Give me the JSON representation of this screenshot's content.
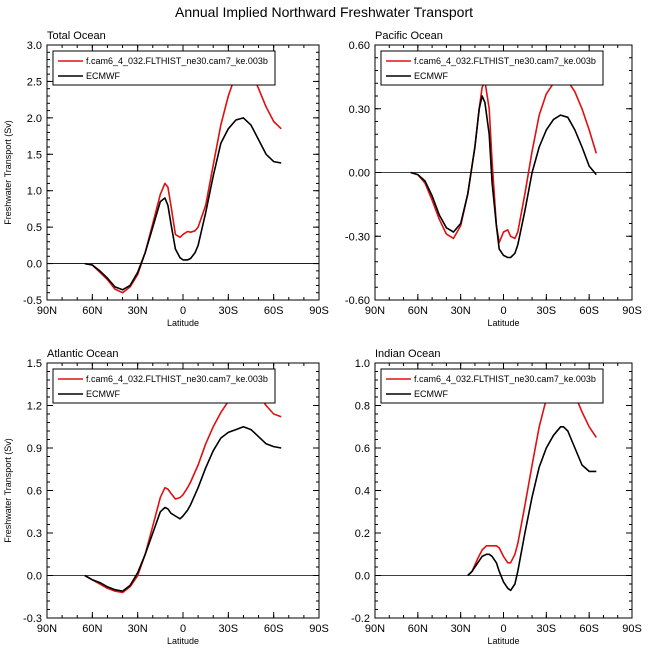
{
  "figure": {
    "title": "Annual Implied Northward Freshwater Transport"
  },
  "chart_data": [
    {
      "type": "line",
      "title": "Total Ocean",
      "xlabel": "Latitude",
      "ylabel": "Freshwater Transport (Sv)",
      "x_ticks": [
        "90N",
        "60N",
        "30N",
        "0",
        "30S",
        "60S",
        "90S"
      ],
      "y_ticks": [
        "-0.5",
        "0.0",
        "0.5",
        "1.0",
        "1.5",
        "2.0",
        "2.5",
        "3.0"
      ],
      "xlim": [
        90,
        -90
      ],
      "ylim": [
        -0.5,
        3.0
      ],
      "zero_line": true,
      "legend_position": "top-left",
      "series": [
        {
          "name": "f.cam6_4_032.FLTHIST_ne30.cam7_ke.003b",
          "color": "#e01010",
          "x": [
            65,
            60,
            55,
            50,
            45,
            40,
            35,
            30,
            25,
            20,
            15,
            12,
            10,
            8,
            5,
            2,
            0,
            -3,
            -5,
            -8,
            -10,
            -15,
            -20,
            -25,
            -30,
            -35,
            -40,
            -45,
            -50,
            -55,
            -60,
            -65
          ],
          "y": [
            0.0,
            -0.02,
            -0.12,
            -0.22,
            -0.35,
            -0.4,
            -0.32,
            -0.15,
            0.15,
            0.55,
            0.95,
            1.1,
            1.05,
            0.8,
            0.4,
            0.36,
            0.4,
            0.44,
            0.43,
            0.45,
            0.5,
            0.8,
            1.35,
            1.9,
            2.3,
            2.6,
            2.72,
            2.65,
            2.4,
            2.15,
            1.95,
            1.85
          ]
        },
        {
          "name": "ECMWF",
          "color": "#000000",
          "x": [
            65,
            60,
            55,
            50,
            45,
            40,
            35,
            30,
            25,
            20,
            15,
            12,
            10,
            8,
            5,
            2,
            0,
            -3,
            -5,
            -8,
            -10,
            -15,
            -20,
            -25,
            -30,
            -35,
            -40,
            -45,
            -50,
            -55,
            -60,
            -65
          ],
          "y": [
            0.0,
            -0.02,
            -0.1,
            -0.2,
            -0.32,
            -0.36,
            -0.3,
            -0.12,
            0.15,
            0.5,
            0.85,
            0.9,
            0.8,
            0.55,
            0.2,
            0.08,
            0.05,
            0.05,
            0.07,
            0.15,
            0.25,
            0.7,
            1.2,
            1.65,
            1.85,
            1.97,
            2.0,
            1.9,
            1.7,
            1.5,
            1.4,
            1.38
          ]
        }
      ]
    },
    {
      "type": "line",
      "title": "Pacific Ocean",
      "xlabel": "Latitude",
      "ylabel": "",
      "x_ticks": [
        "90N",
        "60N",
        "30N",
        "0",
        "30S",
        "60S",
        "90S"
      ],
      "y_ticks": [
        "-0.60",
        "-0.30",
        "0.00",
        "0.30",
        "0.60"
      ],
      "xlim": [
        90,
        -90
      ],
      "ylim": [
        -0.6,
        0.6
      ],
      "zero_line": true,
      "legend_position": "top-left",
      "series": [
        {
          "name": "f.cam6_4_032.FLTHIST_ne30.cam7_ke.003b",
          "color": "#e01010",
          "x": [
            65,
            60,
            55,
            50,
            45,
            40,
            35,
            30,
            25,
            20,
            17,
            15,
            13,
            10,
            8,
            5,
            3,
            0,
            -3,
            -5,
            -8,
            -10,
            -15,
            -20,
            -25,
            -30,
            -35,
            -40,
            -45,
            -50,
            -55,
            -60,
            -65
          ],
          "y": [
            0.0,
            -0.01,
            -0.05,
            -0.13,
            -0.22,
            -0.29,
            -0.31,
            -0.25,
            -0.1,
            0.12,
            0.3,
            0.4,
            0.43,
            0.3,
            0.05,
            -0.25,
            -0.33,
            -0.28,
            -0.27,
            -0.3,
            -0.31,
            -0.28,
            -0.1,
            0.1,
            0.27,
            0.37,
            0.42,
            0.44,
            0.43,
            0.38,
            0.3,
            0.2,
            0.09
          ]
        },
        {
          "name": "ECMWF",
          "color": "#000000",
          "x": [
            65,
            60,
            55,
            50,
            45,
            40,
            35,
            30,
            25,
            20,
            17,
            15,
            13,
            10,
            8,
            5,
            3,
            0,
            -3,
            -5,
            -8,
            -10,
            -15,
            -20,
            -25,
            -30,
            -35,
            -40,
            -45,
            -50,
            -55,
            -60,
            -65
          ],
          "y": [
            0.0,
            -0.01,
            -0.04,
            -0.11,
            -0.2,
            -0.26,
            -0.28,
            -0.24,
            -0.1,
            0.12,
            0.3,
            0.36,
            0.33,
            0.18,
            -0.05,
            -0.25,
            -0.36,
            -0.39,
            -0.4,
            -0.4,
            -0.38,
            -0.34,
            -0.18,
            0.0,
            0.12,
            0.2,
            0.25,
            0.27,
            0.26,
            0.2,
            0.12,
            0.03,
            -0.01
          ]
        }
      ]
    },
    {
      "type": "line",
      "title": "Atlantic Ocean",
      "xlabel": "Latitude",
      "ylabel": "Freshwater Transport (Sv)",
      "x_ticks": [
        "90N",
        "60N",
        "30N",
        "0",
        "30S",
        "60S",
        "90S"
      ],
      "y_ticks": [
        "-0.3",
        "0.0",
        "0.3",
        "0.6",
        "0.9",
        "1.2",
        "1.5"
      ],
      "xlim": [
        90,
        -90
      ],
      "ylim": [
        -0.3,
        1.5
      ],
      "zero_line": true,
      "legend_position": "top-left",
      "series": [
        {
          "name": "f.cam6_4_032.FLTHIST_ne30.cam7_ke.003b",
          "color": "#e01010",
          "x": [
            65,
            60,
            55,
            50,
            45,
            40,
            35,
            30,
            25,
            20,
            15,
            12,
            10,
            8,
            5,
            2,
            0,
            -3,
            -5,
            -10,
            -15,
            -20,
            -25,
            -30,
            -35,
            -40,
            -45,
            -50,
            -55,
            -60,
            -65
          ],
          "y": [
            0.0,
            -0.03,
            -0.06,
            -0.09,
            -0.11,
            -0.12,
            -0.08,
            0.0,
            0.15,
            0.35,
            0.55,
            0.62,
            0.61,
            0.58,
            0.54,
            0.55,
            0.57,
            0.62,
            0.66,
            0.78,
            0.93,
            1.05,
            1.15,
            1.23,
            1.3,
            1.35,
            1.34,
            1.28,
            1.2,
            1.14,
            1.12
          ]
        },
        {
          "name": "ECMWF",
          "color": "#000000",
          "x": [
            65,
            60,
            55,
            50,
            45,
            40,
            35,
            30,
            25,
            20,
            15,
            12,
            10,
            8,
            5,
            2,
            0,
            -3,
            -5,
            -10,
            -15,
            -20,
            -25,
            -30,
            -35,
            -40,
            -45,
            -50,
            -55,
            -60,
            -65
          ],
          "y": [
            0.0,
            -0.03,
            -0.05,
            -0.08,
            -0.1,
            -0.11,
            -0.07,
            0.02,
            0.15,
            0.3,
            0.45,
            0.48,
            0.47,
            0.44,
            0.42,
            0.4,
            0.42,
            0.46,
            0.5,
            0.62,
            0.76,
            0.88,
            0.97,
            1.01,
            1.03,
            1.05,
            1.03,
            0.98,
            0.93,
            0.91,
            0.9
          ]
        }
      ]
    },
    {
      "type": "line",
      "title": "Indian Ocean",
      "xlabel": "Latitude",
      "ylabel": "",
      "x_ticks": [
        "90N",
        "60N",
        "30N",
        "0",
        "30S",
        "60S",
        "90S"
      ],
      "y_ticks": [
        "-0.2",
        "0.0",
        "0.2",
        "0.4",
        "0.6",
        "0.8",
        "1.0"
      ],
      "xlim": [
        90,
        -90
      ],
      "ylim": [
        -0.2,
        1.0
      ],
      "zero_line": true,
      "legend_position": "top-left",
      "series": [
        {
          "name": "f.cam6_4_032.FLTHIST_ne30.cam7_ke.003b",
          "color": "#e01010",
          "x": [
            25,
            22,
            20,
            18,
            15,
            12,
            10,
            8,
            5,
            3,
            0,
            -3,
            -5,
            -8,
            -10,
            -15,
            -20,
            -25,
            -30,
            -35,
            -40,
            -42,
            -45,
            -50,
            -55,
            -60,
            -65
          ],
          "y": [
            0.0,
            0.02,
            0.05,
            0.08,
            0.12,
            0.14,
            0.14,
            0.14,
            0.14,
            0.13,
            0.09,
            0.06,
            0.06,
            0.1,
            0.15,
            0.33,
            0.52,
            0.7,
            0.83,
            0.92,
            0.95,
            0.95,
            0.92,
            0.85,
            0.77,
            0.7,
            0.65
          ]
        },
        {
          "name": "ECMWF",
          "color": "#000000",
          "x": [
            25,
            22,
            20,
            18,
            15,
            12,
            10,
            8,
            5,
            3,
            0,
            -3,
            -5,
            -8,
            -10,
            -15,
            -20,
            -25,
            -30,
            -35,
            -40,
            -42,
            -45,
            -50,
            -55,
            -60,
            -65
          ],
          "y": [
            0.0,
            0.02,
            0.04,
            0.06,
            0.09,
            0.1,
            0.1,
            0.09,
            0.06,
            0.02,
            -0.03,
            -0.06,
            -0.07,
            -0.04,
            0.02,
            0.2,
            0.37,
            0.51,
            0.6,
            0.66,
            0.7,
            0.7,
            0.68,
            0.6,
            0.52,
            0.49,
            0.49
          ]
        }
      ]
    }
  ]
}
